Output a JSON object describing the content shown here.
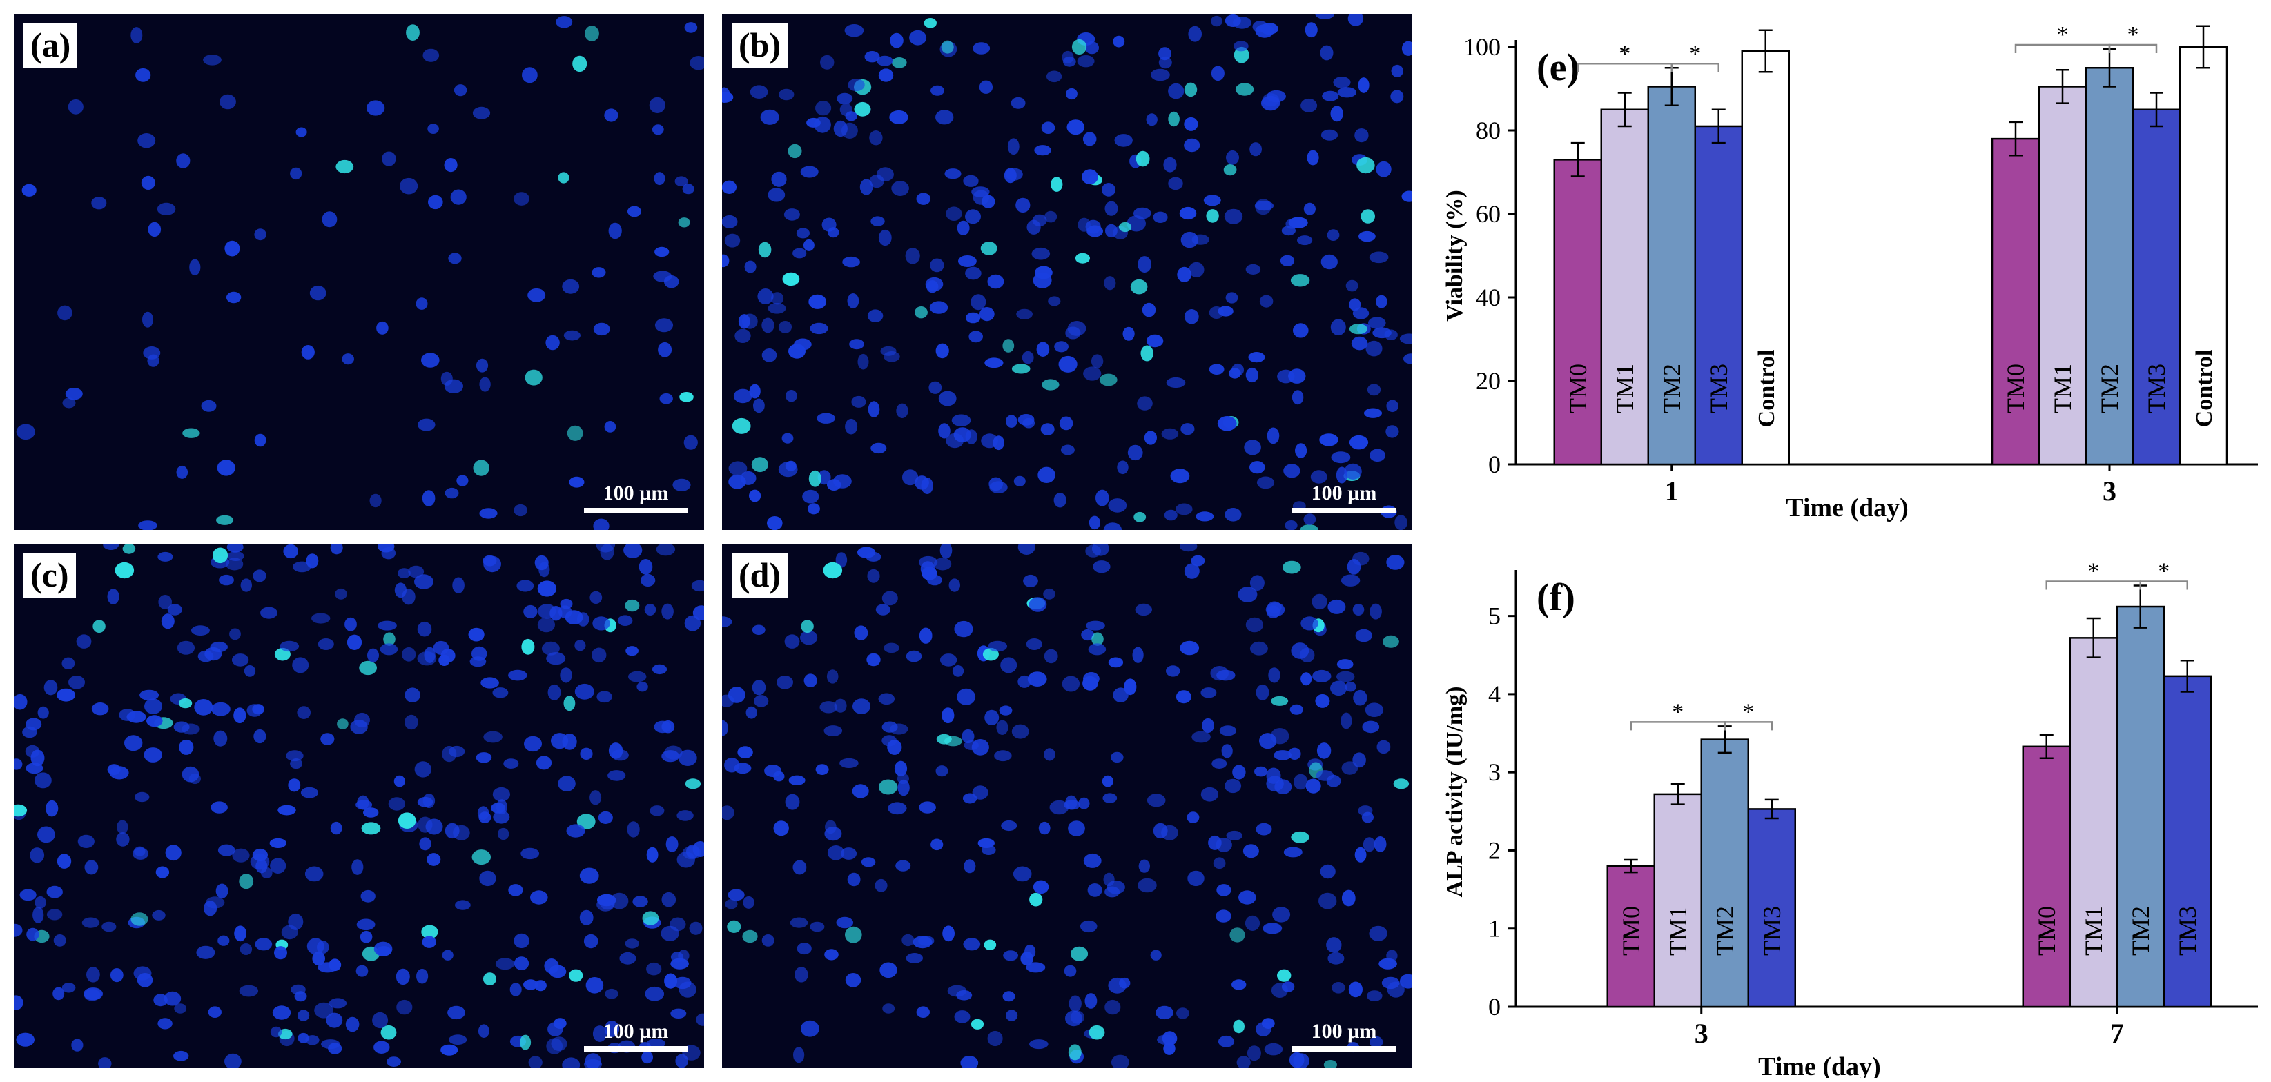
{
  "micrographs": [
    {
      "label": "(a)",
      "scale_text": "100 µm",
      "density": 0.25,
      "seed": 11
    },
    {
      "label": "(b)",
      "scale_text": "100 µm",
      "density": 0.85,
      "seed": 23
    },
    {
      "label": "(c)",
      "scale_text": "100 µm",
      "density": 0.95,
      "seed": 37
    },
    {
      "label": "(d)",
      "scale_text": "100 µm",
      "density": 0.8,
      "seed": 53
    }
  ],
  "colors": {
    "TM0": "#a3449c",
    "TM1": "#cdc3e3",
    "TM2": "#6f96c1",
    "TM3": "#3c49c6",
    "Control": "#ffffff",
    "cell_nucleus": "#1a3fe0",
    "cell_bright": "#31e2e6",
    "panel_bg": "#03051f"
  },
  "chart_data": [
    {
      "type": "bar",
      "panel_label": "(e)",
      "xlabel": "Time (day)",
      "ylabel": "Viability (%)",
      "ylim": [
        0,
        100
      ],
      "yticks": [
        0,
        20,
        40,
        60,
        80,
        100
      ],
      "categories": [
        "1",
        "3"
      ],
      "series": [
        {
          "name": "TM0",
          "values": [
            73,
            78
          ],
          "errors": [
            4,
            4
          ]
        },
        {
          "name": "TM1",
          "values": [
            85,
            90.5
          ],
          "errors": [
            4,
            4
          ]
        },
        {
          "name": "TM2",
          "values": [
            90.5,
            95
          ],
          "errors": [
            4.5,
            4.5
          ]
        },
        {
          "name": "TM3",
          "values": [
            81,
            85
          ],
          "errors": [
            4,
            4
          ]
        },
        {
          "name": "Control",
          "values": [
            99,
            100
          ],
          "errors": [
            5,
            5
          ]
        }
      ],
      "significance": [
        {
          "category": 0,
          "from": "TM0",
          "to": "TM2",
          "text": "*"
        },
        {
          "category": 0,
          "from": "TM2",
          "to": "TM3",
          "text": "*"
        },
        {
          "category": 1,
          "from": "TM0",
          "to": "TM2",
          "text": "*"
        },
        {
          "category": 1,
          "from": "TM2",
          "to": "TM3",
          "text": "*"
        }
      ]
    },
    {
      "type": "bar",
      "panel_label": "(f)",
      "xlabel": "Time (day)",
      "ylabel": "ALP activity (IU/mg)",
      "ylim": [
        0,
        5.5
      ],
      "yticks": [
        0,
        1,
        2,
        3,
        4,
        5
      ],
      "categories": [
        "3",
        "7"
      ],
      "series": [
        {
          "name": "TM0",
          "values": [
            1.8,
            3.33
          ],
          "errors": [
            0.08,
            0.15
          ]
        },
        {
          "name": "TM1",
          "values": [
            2.72,
            4.72
          ],
          "errors": [
            0.13,
            0.25
          ]
        },
        {
          "name": "TM2",
          "values": [
            3.42,
            5.12
          ],
          "errors": [
            0.17,
            0.27
          ]
        },
        {
          "name": "TM3",
          "values": [
            2.53,
            4.23
          ],
          "errors": [
            0.12,
            0.2
          ]
        }
      ],
      "significance": [
        {
          "category": 0,
          "from": "TM0",
          "to": "TM2",
          "text": "*"
        },
        {
          "category": 0,
          "from": "TM2",
          "to": "TM3",
          "text": "*"
        },
        {
          "category": 1,
          "from": "TM0",
          "to": "TM2",
          "text": "*"
        },
        {
          "category": 1,
          "from": "TM2",
          "to": "TM3",
          "text": "*"
        }
      ]
    }
  ]
}
